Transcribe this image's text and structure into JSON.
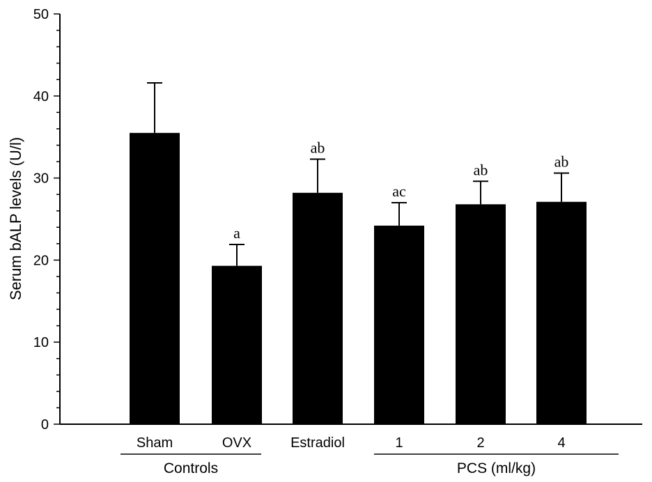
{
  "chart_data": {
    "type": "bar",
    "ylabel": "Serum bALP levels (U/l)",
    "xlabel": "",
    "ylim": [
      0,
      50
    ],
    "yticks": [
      0,
      10,
      20,
      30,
      40,
      50
    ],
    "y_minor_step": 2,
    "grid": false,
    "legend": "none",
    "bar_color": "#000000",
    "categories": [
      "Sham",
      "OVX",
      "Estradiol",
      "1",
      "2",
      "4"
    ],
    "values": [
      35.5,
      19.3,
      28.2,
      24.2,
      26.8,
      27.1
    ],
    "error_upper": [
      41.6,
      21.9,
      32.3,
      27.0,
      29.6,
      30.6
    ],
    "annotations": [
      "",
      "a",
      "ab",
      "ac",
      "ab",
      "ab"
    ],
    "groups": [
      {
        "label": "Controls",
        "from": 0,
        "to": 1
      },
      {
        "label": "PCS (ml/kg)",
        "from": 3,
        "to": 5
      }
    ]
  }
}
